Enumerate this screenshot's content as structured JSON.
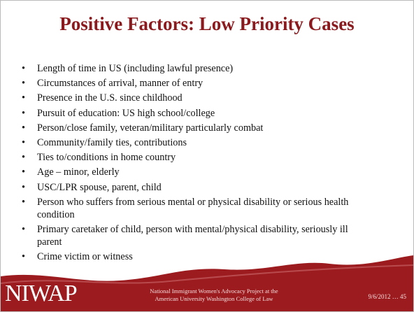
{
  "slide": {
    "title": "Positive Factors: Low Priority Cases",
    "bullets": [
      "Length of time in US (including lawful presence)",
      "Circumstances of arrival, manner of entry",
      "Presence in the U.S. since childhood",
      "Pursuit of education: US high school/college",
      "Person/close family, veteran/military particularly combat",
      "Community/family ties, contributions",
      "Ties to/conditions in home country",
      "Age – minor, elderly",
      "USC/LPR spouse, parent, child",
      "Person who suffers from serious mental or physical disability or serious health condition",
      "Primary caretaker of child, person with mental/physical disability, seriously ill parent",
      "Crime victim or witness"
    ],
    "footer": {
      "logo": "NIWAP",
      "org_line1": "National Immigrant Women's Advocacy Project at the",
      "org_line2": "American University Washington College of Law",
      "date_page": "9/6/2012 … 45"
    }
  }
}
